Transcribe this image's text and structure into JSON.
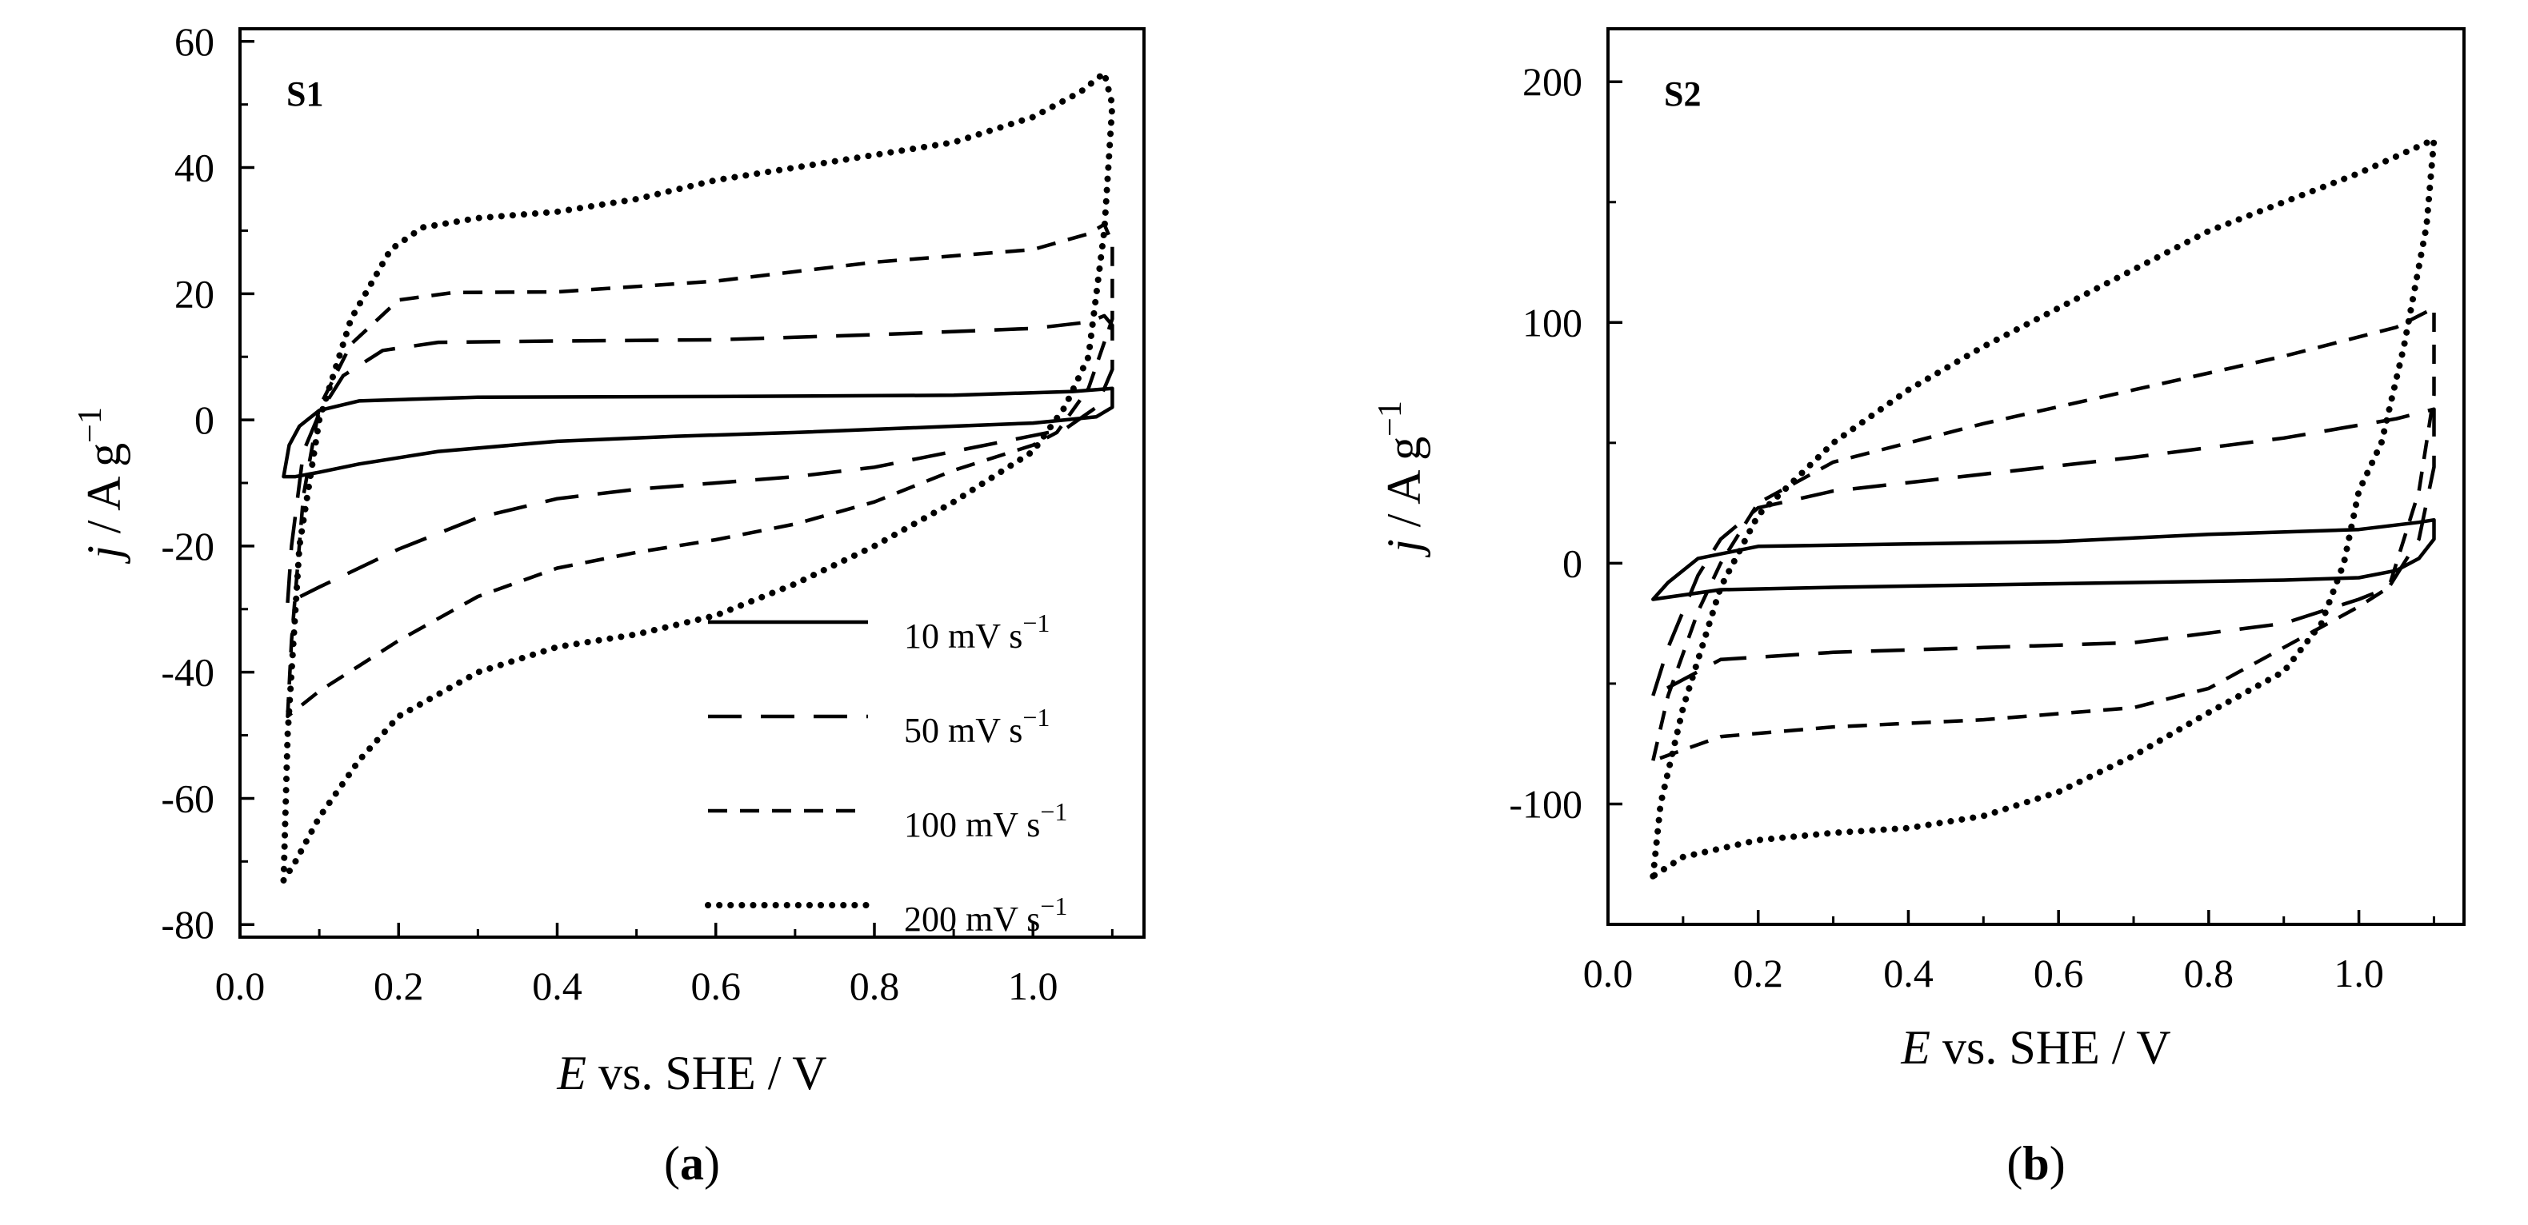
{
  "chart_data": [
    {
      "type": "line",
      "panel": "(a)",
      "panel_letter": "a",
      "panel_tag": "S1",
      "xlabel": {
        "italic": "E",
        "rest": " vs. SHE / V"
      },
      "ylabel": {
        "italic": "j",
        "rest": " / A g",
        "sup": "−1"
      },
      "xlim": [
        0.0,
        1.14
      ],
      "ylim": [
        -82,
        62
      ],
      "xticks": [
        0.0,
        0.2,
        0.4,
        0.6,
        0.8,
        1.0
      ],
      "xtick_labels": [
        "0.0",
        "0.2",
        "0.4",
        "0.6",
        "0.8",
        "1.0"
      ],
      "yticks": [
        60,
        40,
        20,
        0,
        -20,
        -40,
        -60,
        -80
      ],
      "ytick_labels": [
        "60",
        "40",
        "20",
        "0",
        "-20",
        "-40",
        "-60",
        "-80"
      ],
      "legend": {
        "position": "lower-right",
        "entries": [
          {
            "label": "10 mV s",
            "sup": "−1",
            "style": "solid"
          },
          {
            "label": "50 mV s",
            "sup": "−1",
            "style": "long-dash"
          },
          {
            "label": "100 mV s",
            "sup": "−1",
            "style": "short-dash"
          },
          {
            "label": "200 mV s",
            "sup": "−1",
            "style": "dotted"
          }
        ]
      },
      "series": [
        {
          "name": "10 mV s−1",
          "style": "solid",
          "points": [
            [
              0.055,
              -9
            ],
            [
              0.062,
              -4
            ],
            [
              0.075,
              -1
            ],
            [
              0.1,
              1.5
            ],
            [
              0.15,
              3
            ],
            [
              0.3,
              3.6
            ],
            [
              0.6,
              3.7
            ],
            [
              0.9,
              3.9
            ],
            [
              1.05,
              4.5
            ],
            [
              1.1,
              5
            ],
            [
              1.1,
              4
            ],
            [
              1.1,
              2
            ],
            [
              1.08,
              0.5
            ],
            [
              1.0,
              -0.5
            ],
            [
              0.9,
              -1
            ],
            [
              0.7,
              -2
            ],
            [
              0.55,
              -2.6
            ],
            [
              0.4,
              -3.4
            ],
            [
              0.25,
              -5
            ],
            [
              0.15,
              -7
            ],
            [
              0.1,
              -8.3
            ],
            [
              0.07,
              -9
            ],
            [
              0.055,
              -9
            ]
          ]
        },
        {
          "name": "50 mV s−1",
          "style": "long-dash",
          "points": [
            [
              0.06,
              -29
            ],
            [
              0.065,
              -20
            ],
            [
              0.08,
              -5
            ],
            [
              0.1,
              1
            ],
            [
              0.13,
              7
            ],
            [
              0.18,
              11
            ],
            [
              0.25,
              12.3
            ],
            [
              0.4,
              12.5
            ],
            [
              0.6,
              12.7
            ],
            [
              0.8,
              13.5
            ],
            [
              1.0,
              14.5
            ],
            [
              1.07,
              15.5
            ],
            [
              1.09,
              16.5
            ],
            [
              1.1,
              15
            ],
            [
              1.1,
              8
            ],
            [
              1.08,
              2
            ],
            [
              1.04,
              -1.5
            ],
            [
              1.0,
              -2.5
            ],
            [
              0.9,
              -5
            ],
            [
              0.8,
              -7.5
            ],
            [
              0.7,
              -9
            ],
            [
              0.6,
              -10
            ],
            [
              0.5,
              -11
            ],
            [
              0.4,
              -12.5
            ],
            [
              0.3,
              -15.5
            ],
            [
              0.2,
              -20.5
            ],
            [
              0.15,
              -23.5
            ],
            [
              0.1,
              -26.5
            ],
            [
              0.06,
              -29
            ]
          ]
        },
        {
          "name": "100 mV s−1",
          "style": "short-dash",
          "points": [
            [
              0.06,
              -47
            ],
            [
              0.065,
              -35
            ],
            [
              0.08,
              -12
            ],
            [
              0.1,
              2
            ],
            [
              0.14,
              12
            ],
            [
              0.2,
              19
            ],
            [
              0.27,
              20.2
            ],
            [
              0.4,
              20.3
            ],
            [
              0.6,
              22
            ],
            [
              0.8,
              25
            ],
            [
              1.0,
              27
            ],
            [
              1.07,
              29.5
            ],
            [
              1.09,
              31
            ],
            [
              1.1,
              28
            ],
            [
              1.1,
              16
            ],
            [
              1.07,
              5
            ],
            [
              1.03,
              -2
            ],
            [
              1.0,
              -4
            ],
            [
              0.9,
              -8
            ],
            [
              0.8,
              -13
            ],
            [
              0.7,
              -16.5
            ],
            [
              0.6,
              -19
            ],
            [
              0.5,
              -21
            ],
            [
              0.4,
              -23.5
            ],
            [
              0.3,
              -28
            ],
            [
              0.2,
              -35
            ],
            [
              0.15,
              -39
            ],
            [
              0.1,
              -43
            ],
            [
              0.06,
              -47
            ]
          ]
        },
        {
          "name": "200 mV s−1",
          "style": "dotted",
          "points": [
            [
              0.055,
              -73
            ],
            [
              0.06,
              -50
            ],
            [
              0.075,
              -20
            ],
            [
              0.1,
              0
            ],
            [
              0.14,
              16
            ],
            [
              0.19,
              27
            ],
            [
              0.23,
              30.5
            ],
            [
              0.3,
              32
            ],
            [
              0.4,
              33
            ],
            [
              0.5,
              35
            ],
            [
              0.6,
              38
            ],
            [
              0.7,
              40
            ],
            [
              0.8,
              42
            ],
            [
              0.9,
              44
            ],
            [
              1.0,
              48
            ],
            [
              1.06,
              52
            ],
            [
              1.09,
              55
            ],
            [
              1.1,
              50
            ],
            [
              1.09,
              30
            ],
            [
              1.07,
              10
            ],
            [
              1.04,
              2
            ],
            [
              1.0,
              -5
            ],
            [
              0.9,
              -13
            ],
            [
              0.8,
              -20
            ],
            [
              0.7,
              -26
            ],
            [
              0.6,
              -31
            ],
            [
              0.5,
              -34
            ],
            [
              0.4,
              -36
            ],
            [
              0.3,
              -40
            ],
            [
              0.2,
              -47
            ],
            [
              0.15,
              -54
            ],
            [
              0.1,
              -63
            ],
            [
              0.07,
              -70
            ],
            [
              0.055,
              -73
            ]
          ]
        }
      ]
    },
    {
      "type": "line",
      "panel": "(b)",
      "panel_letter": "b",
      "panel_tag": "S2",
      "xlabel": {
        "italic": "E",
        "rest": " vs. SHE / V"
      },
      "ylabel": {
        "italic": "j",
        "rest": " / A g",
        "sup": "−1"
      },
      "xlim": [
        0.0,
        1.14
      ],
      "ylim": [
        -150,
        222
      ],
      "xticks": [
        0.0,
        0.2,
        0.4,
        0.6,
        0.8,
        1.0
      ],
      "xtick_labels": [
        "0.0",
        "0.2",
        "0.4",
        "0.6",
        "0.8",
        "1.0"
      ],
      "yticks": [
        200,
        100,
        0,
        -100
      ],
      "ytick_labels": [
        "200",
        "100",
        "0",
        "-100"
      ],
      "series": [
        {
          "name": "10 mV s−1",
          "style": "solid",
          "points": [
            [
              0.06,
              -15
            ],
            [
              0.08,
              -8
            ],
            [
              0.12,
              2
            ],
            [
              0.2,
              7
            ],
            [
              0.4,
              8
            ],
            [
              0.6,
              9
            ],
            [
              0.8,
              12
            ],
            [
              1.0,
              14
            ],
            [
              1.08,
              17
            ],
            [
              1.1,
              18
            ],
            [
              1.1,
              10
            ],
            [
              1.08,
              2
            ],
            [
              1.05,
              -3
            ],
            [
              1.0,
              -6
            ],
            [
              0.9,
              -7
            ],
            [
              0.7,
              -8
            ],
            [
              0.5,
              -9
            ],
            [
              0.3,
              -10
            ],
            [
              0.15,
              -11
            ],
            [
              0.06,
              -15
            ]
          ]
        },
        {
          "name": "50 mV s−1",
          "style": "long-dash",
          "points": [
            [
              0.06,
              -55
            ],
            [
              0.08,
              -35
            ],
            [
              0.12,
              -5
            ],
            [
              0.15,
              10
            ],
            [
              0.2,
              23
            ],
            [
              0.3,
              30
            ],
            [
              0.5,
              37
            ],
            [
              0.7,
              44
            ],
            [
              0.9,
              52
            ],
            [
              1.05,
              60
            ],
            [
              1.1,
              64
            ],
            [
              1.1,
              40
            ],
            [
              1.08,
              10
            ],
            [
              1.04,
              -10
            ],
            [
              1.0,
              -15
            ],
            [
              0.9,
              -25
            ],
            [
              0.7,
              -33
            ],
            [
              0.5,
              -35
            ],
            [
              0.3,
              -37
            ],
            [
              0.15,
              -40
            ],
            [
              0.06,
              -55
            ]
          ]
        },
        {
          "name": "100 mV s−1",
          "style": "short-dash",
          "points": [
            [
              0.06,
              -82
            ],
            [
              0.08,
              -55
            ],
            [
              0.12,
              -20
            ],
            [
              0.15,
              0
            ],
            [
              0.2,
              25
            ],
            [
              0.3,
              42
            ],
            [
              0.5,
              58
            ],
            [
              0.7,
              72
            ],
            [
              0.9,
              86
            ],
            [
              1.05,
              98
            ],
            [
              1.1,
              106
            ],
            [
              1.1,
              70
            ],
            [
              1.08,
              30
            ],
            [
              1.04,
              -10
            ],
            [
              1.0,
              -18
            ],
            [
              0.9,
              -35
            ],
            [
              0.8,
              -52
            ],
            [
              0.7,
              -60
            ],
            [
              0.5,
              -65
            ],
            [
              0.3,
              -68
            ],
            [
              0.15,
              -72
            ],
            [
              0.06,
              -82
            ]
          ]
        },
        {
          "name": "200 mV s−1",
          "style": "dotted",
          "points": [
            [
              0.06,
              -130
            ],
            [
              0.07,
              -100
            ],
            [
              0.1,
              -60
            ],
            [
              0.15,
              -10
            ],
            [
              0.2,
              20
            ],
            [
              0.3,
              50
            ],
            [
              0.4,
              72
            ],
            [
              0.5,
              90
            ],
            [
              0.6,
              106
            ],
            [
              0.7,
              122
            ],
            [
              0.8,
              138
            ],
            [
              0.9,
              150
            ],
            [
              1.0,
              162
            ],
            [
              1.1,
              176
            ],
            [
              1.09,
              140
            ],
            [
              1.06,
              90
            ],
            [
              1.03,
              50
            ],
            [
              1.0,
              30
            ],
            [
              0.98,
              0
            ],
            [
              0.95,
              -25
            ],
            [
              0.9,
              -45
            ],
            [
              0.8,
              -62
            ],
            [
              0.7,
              -80
            ],
            [
              0.6,
              -95
            ],
            [
              0.5,
              -105
            ],
            [
              0.4,
              -110
            ],
            [
              0.3,
              -112
            ],
            [
              0.2,
              -115
            ],
            [
              0.1,
              -122
            ],
            [
              0.06,
              -130
            ]
          ]
        }
      ]
    }
  ]
}
